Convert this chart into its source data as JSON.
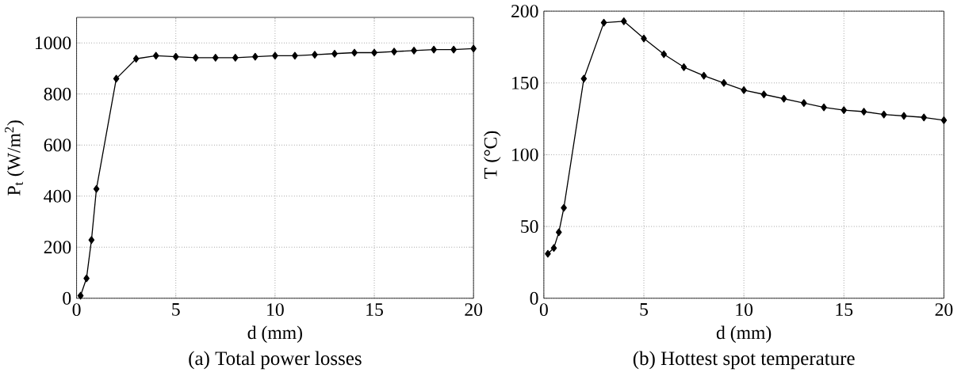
{
  "chart_data": [
    {
      "type": "line",
      "title": "(a) Total power losses",
      "xlabel": "d (mm)",
      "ylabel": "P$_{t}$ (W/m$^{2}$)",
      "x": [
        0.2,
        0.5,
        0.75,
        1,
        2,
        3,
        4,
        5,
        6,
        7,
        8,
        9,
        10,
        11,
        12,
        13,
        14,
        15,
        16,
        17,
        18,
        19,
        20
      ],
      "series": [
        {
          "color": "#000000",
          "values": [
            10,
            78,
            228,
            428,
            860,
            938,
            950,
            946,
            942,
            942,
            942,
            946,
            950,
            950,
            954,
            958,
            962,
            962,
            966,
            970,
            974,
            974,
            978
          ]
        }
      ],
      "xlim": [
        0,
        20
      ],
      "ylim": [
        0,
        1100
      ],
      "xticks": [
        0,
        5,
        10,
        15,
        20
      ],
      "yticks": [
        0,
        200,
        400,
        600,
        800,
        1000
      ],
      "grid": true,
      "marker": "diamond",
      "line_style": "solid"
    },
    {
      "type": "line",
      "title": "(b) Hottest spot temperature",
      "xlabel": "d (mm)",
      "ylabel": "T (°C)",
      "x": [
        0.2,
        0.5,
        0.75,
        1,
        2,
        3,
        4,
        5,
        6,
        7,
        8,
        9,
        10,
        11,
        12,
        13,
        14,
        15,
        16,
        17,
        18,
        19,
        20
      ],
      "series": [
        {
          "color": "#000000",
          "values": [
            31,
            35,
            46,
            63,
            153,
            192,
            193,
            181,
            170,
            161,
            155,
            150,
            145,
            142,
            139,
            136,
            133,
            131,
            130,
            128,
            127,
            126,
            124
          ]
        }
      ],
      "xlim": [
        0,
        20
      ],
      "ylim": [
        0,
        200
      ],
      "xticks": [
        0,
        5,
        10,
        15,
        20
      ],
      "yticks": [
        0,
        50,
        100,
        150,
        200
      ],
      "grid": true,
      "marker": "diamond",
      "line_style": "solid"
    }
  ]
}
